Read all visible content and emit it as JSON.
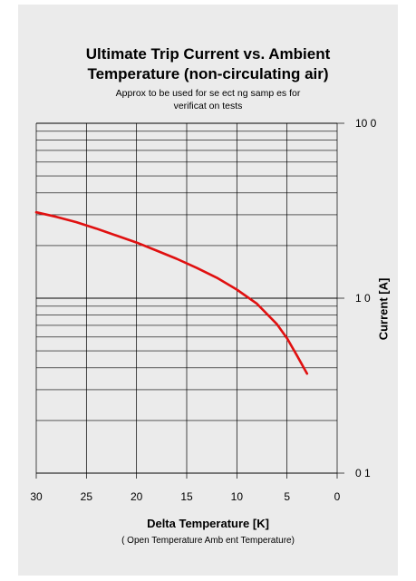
{
  "chart_data": {
    "type": "line",
    "title_line1": "Ultimate Trip Current vs. Ambient",
    "title_line2": "Temperature (non-circulating air)",
    "subtitle_line1": "Approx  to be used for se ect ng samp es for",
    "subtitle_line2": "verificat on tests",
    "xlabel": "Delta Temperature [K]",
    "xlabel_sub": "(   Open Temperature    Amb ent Temperature)",
    "ylabel": "Current [A]",
    "x_reversed": true,
    "xlim": [
      30,
      0
    ],
    "ylim": [
      0.1,
      10
    ],
    "y_scale": "log",
    "grid": true,
    "x_ticks": [
      30,
      25,
      20,
      15,
      10,
      5,
      0
    ],
    "y_ticks": [
      {
        "value": 10,
        "label": "10 0"
      },
      {
        "value": 1,
        "label": "1 0"
      },
      {
        "value": 0.1,
        "label": "0 1"
      }
    ],
    "series_color": "#e01010",
    "series": [
      {
        "x": [
          30,
          28,
          26,
          24,
          22,
          20,
          18,
          16,
          14,
          12,
          10,
          8,
          6,
          5,
          4,
          3
        ],
        "y": [
          3.1,
          2.92,
          2.72,
          2.5,
          2.28,
          2.08,
          1.87,
          1.68,
          1.49,
          1.31,
          1.12,
          0.93,
          0.71,
          0.59,
          0.47,
          0.37
        ]
      }
    ]
  }
}
